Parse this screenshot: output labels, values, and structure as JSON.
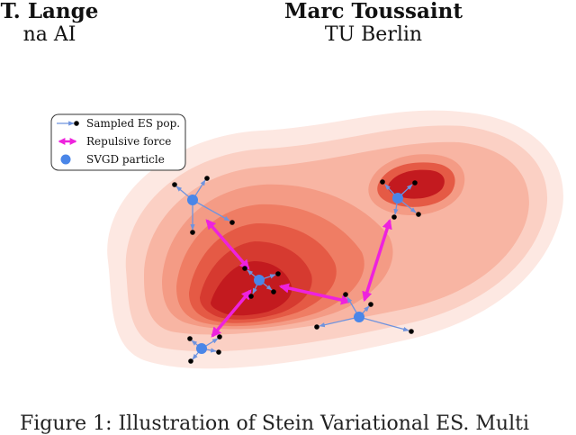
{
  "authors": [
    {
      "name": "T. Lange",
      "affiliation": "na AI"
    },
    {
      "name": "Marc Toussaint",
      "affiliation": "TU Berlin"
    }
  ],
  "figure": {
    "legend": {
      "sampled": "Sampled ES pop.",
      "repulsive": "Repulsive force",
      "particle": "SVGD particle"
    },
    "colors": {
      "particle": "#4a86e8",
      "repulsive": "#ee22dd",
      "sampled_arrow": "#7f9fe0",
      "density_light": "#fde5df",
      "density_dark": "#c31a1f"
    }
  },
  "caption": "Figure 1: Illustration of Stein Variational ES. Multi"
}
